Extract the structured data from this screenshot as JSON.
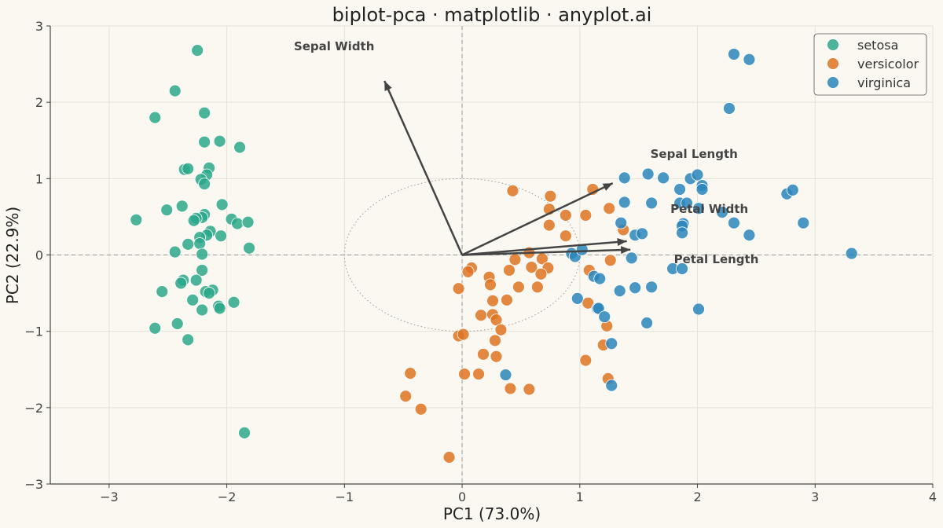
{
  "chart_data": {
    "type": "scatter",
    "title": "biplot-pca · matplotlib · anyplot.ai",
    "xlabel": "PC1 (73.0%)",
    "ylabel": "PC2 (22.9%)",
    "xlim": [
      -3.5,
      4
    ],
    "ylim": [
      -3,
      3
    ],
    "xticks": [
      -3,
      -2,
      -1,
      0,
      1,
      2,
      3,
      4
    ],
    "xtick_labels": [
      "−3",
      "−2",
      "−1",
      "0",
      "1",
      "2",
      "3",
      "4"
    ],
    "yticks": [
      -3,
      -2,
      -1,
      0,
      1,
      2,
      3
    ],
    "ytick_labels": [
      "−3",
      "−2",
      "−1",
      "0",
      "1",
      "2",
      "3"
    ],
    "grid": true,
    "legend_position": "top-right",
    "colors": {
      "setosa": "#2BA88A",
      "versicolor": "#DE7421",
      "virginica": "#2C86BC",
      "arrow": "#444444",
      "background": "#FAF8F1"
    },
    "unit_circle_radius": 1,
    "series": [
      {
        "name": "setosa",
        "points": [
          [
            -2.25,
            2.68
          ],
          [
            -2.44,
            2.15
          ],
          [
            -2.19,
            1.86
          ],
          [
            -2.61,
            1.8
          ],
          [
            -2.06,
            1.49
          ],
          [
            -2.19,
            1.48
          ],
          [
            -1.89,
            1.41
          ],
          [
            -2.36,
            1.12
          ],
          [
            -2.33,
            1.13
          ],
          [
            -2.15,
            1.14
          ],
          [
            -2.17,
            1.05
          ],
          [
            -2.22,
            0.99
          ],
          [
            -2.19,
            0.93
          ],
          [
            -2.04,
            0.66
          ],
          [
            -2.38,
            0.64
          ],
          [
            -2.51,
            0.59
          ],
          [
            -2.19,
            0.53
          ],
          [
            -2.21,
            0.49
          ],
          [
            -2.26,
            0.48
          ],
          [
            -2.28,
            0.45
          ],
          [
            -2.77,
            0.46
          ],
          [
            -1.96,
            0.47
          ],
          [
            -1.91,
            0.41
          ],
          [
            -1.82,
            0.43
          ],
          [
            -2.14,
            0.31
          ],
          [
            -2.17,
            0.26
          ],
          [
            -2.05,
            0.25
          ],
          [
            -2.23,
            0.23
          ],
          [
            -2.23,
            0.15
          ],
          [
            -2.33,
            0.14
          ],
          [
            -2.44,
            0.04
          ],
          [
            -2.21,
            0.01
          ],
          [
            -1.81,
            0.09
          ],
          [
            -2.21,
            -0.2
          ],
          [
            -2.37,
            -0.33
          ],
          [
            -2.26,
            -0.33
          ],
          [
            -2.39,
            -0.37
          ],
          [
            -2.12,
            -0.46
          ],
          [
            -2.55,
            -0.48
          ],
          [
            -2.18,
            -0.48
          ],
          [
            -2.15,
            -0.5
          ],
          [
            -2.29,
            -0.59
          ],
          [
            -1.94,
            -0.62
          ],
          [
            -2.07,
            -0.67
          ],
          [
            -2.06,
            -0.7
          ],
          [
            -2.21,
            -0.72
          ],
          [
            -2.42,
            -0.9
          ],
          [
            -2.61,
            -0.96
          ],
          [
            -2.33,
            -1.11
          ],
          [
            -1.85,
            -2.33
          ]
        ]
      },
      {
        "name": "versicolor",
        "points": [
          [
            0.43,
            0.84
          ],
          [
            0.75,
            0.77
          ],
          [
            1.11,
            0.86
          ],
          [
            0.74,
            0.6
          ],
          [
            0.88,
            0.52
          ],
          [
            1.05,
            0.52
          ],
          [
            1.25,
            0.61
          ],
          [
            0.74,
            0.39
          ],
          [
            0.88,
            0.25
          ],
          [
            1.37,
            0.33
          ],
          [
            0.57,
            0.03
          ],
          [
            0.68,
            -0.05
          ],
          [
            0.45,
            -0.06
          ],
          [
            0.73,
            -0.17
          ],
          [
            0.59,
            -0.16
          ],
          [
            0.67,
            -0.25
          ],
          [
            0.4,
            -0.2
          ],
          [
            0.08,
            -0.17
          ],
          [
            0.05,
            -0.22
          ],
          [
            1.26,
            -0.07
          ],
          [
            1.08,
            -0.2
          ],
          [
            0.23,
            -0.29
          ],
          [
            0.24,
            -0.39
          ],
          [
            0.48,
            -0.42
          ],
          [
            0.64,
            -0.42
          ],
          [
            -0.03,
            -0.44
          ],
          [
            0.38,
            -0.59
          ],
          [
            0.26,
            -0.6
          ],
          [
            1.07,
            -0.63
          ],
          [
            0.16,
            -0.79
          ],
          [
            0.26,
            -0.78
          ],
          [
            0.29,
            -0.85
          ],
          [
            0.33,
            -0.98
          ],
          [
            0.28,
            -1.12
          ],
          [
            1.23,
            -0.93
          ],
          [
            1.2,
            -1.18
          ],
          [
            -0.03,
            -1.06
          ],
          [
            0.01,
            -1.04
          ],
          [
            0.18,
            -1.3
          ],
          [
            0.29,
            -1.33
          ],
          [
            1.05,
            -1.38
          ],
          [
            -0.44,
            -1.55
          ],
          [
            0.02,
            -1.56
          ],
          [
            0.14,
            -1.56
          ],
          [
            1.24,
            -1.62
          ],
          [
            0.41,
            -1.75
          ],
          [
            0.57,
            -1.76
          ],
          [
            -0.48,
            -1.85
          ],
          [
            -0.35,
            -2.02
          ],
          [
            -0.11,
            -2.65
          ]
        ]
      },
      {
        "name": "virginica",
        "points": [
          [
            2.31,
            2.63
          ],
          [
            2.44,
            2.56
          ],
          [
            2.27,
            1.92
          ],
          [
            1.58,
            1.06
          ],
          [
            1.71,
            1.01
          ],
          [
            1.38,
            1.01
          ],
          [
            1.94,
            1.0
          ],
          [
            2.0,
            1.05
          ],
          [
            2.04,
            0.91
          ],
          [
            2.04,
            0.86
          ],
          [
            1.85,
            0.86
          ],
          [
            1.38,
            0.69
          ],
          [
            1.61,
            0.68
          ],
          [
            1.85,
            0.68
          ],
          [
            1.91,
            0.68
          ],
          [
            2.01,
            0.61
          ],
          [
            2.21,
            0.56
          ],
          [
            2.76,
            0.8
          ],
          [
            2.81,
            0.85
          ],
          [
            1.35,
            0.42
          ],
          [
            1.88,
            0.41
          ],
          [
            1.87,
            0.38
          ],
          [
            2.31,
            0.42
          ],
          [
            2.9,
            0.42
          ],
          [
            1.87,
            0.29
          ],
          [
            1.47,
            0.26
          ],
          [
            1.53,
            0.28
          ],
          [
            2.44,
            0.26
          ],
          [
            3.31,
            0.02
          ],
          [
            0.93,
            0.02
          ],
          [
            0.96,
            -0.02
          ],
          [
            1.02,
            0.07
          ],
          [
            1.44,
            -0.04
          ],
          [
            1.79,
            -0.18
          ],
          [
            1.87,
            -0.18
          ],
          [
            1.12,
            -0.28
          ],
          [
            1.17,
            -0.31
          ],
          [
            1.34,
            -0.47
          ],
          [
            1.47,
            -0.43
          ],
          [
            1.61,
            -0.42
          ],
          [
            0.98,
            -0.57
          ],
          [
            1.15,
            -0.7
          ],
          [
            1.16,
            -0.7
          ],
          [
            2.01,
            -0.71
          ],
          [
            1.21,
            -0.81
          ],
          [
            1.57,
            -0.89
          ],
          [
            1.27,
            -1.16
          ],
          [
            0.37,
            -1.57
          ],
          [
            1.27,
            -1.71
          ]
        ]
      }
    ],
    "loadings": [
      {
        "name": "Sepal Length",
        "x": 1.28,
        "y": 0.94,
        "label_x": 1.6,
        "label_y": 1.27
      },
      {
        "name": "Sepal Width",
        "x": -0.66,
        "y": 2.28,
        "label_x": -1.43,
        "label_y": 2.68
      },
      {
        "name": "Petal Length",
        "x": 1.43,
        "y": 0.07,
        "label_x": 1.8,
        "label_y": -0.11
      },
      {
        "name": "Petal Width",
        "x": 1.4,
        "y": 0.18,
        "label_x": 1.77,
        "label_y": 0.55
      }
    ]
  }
}
